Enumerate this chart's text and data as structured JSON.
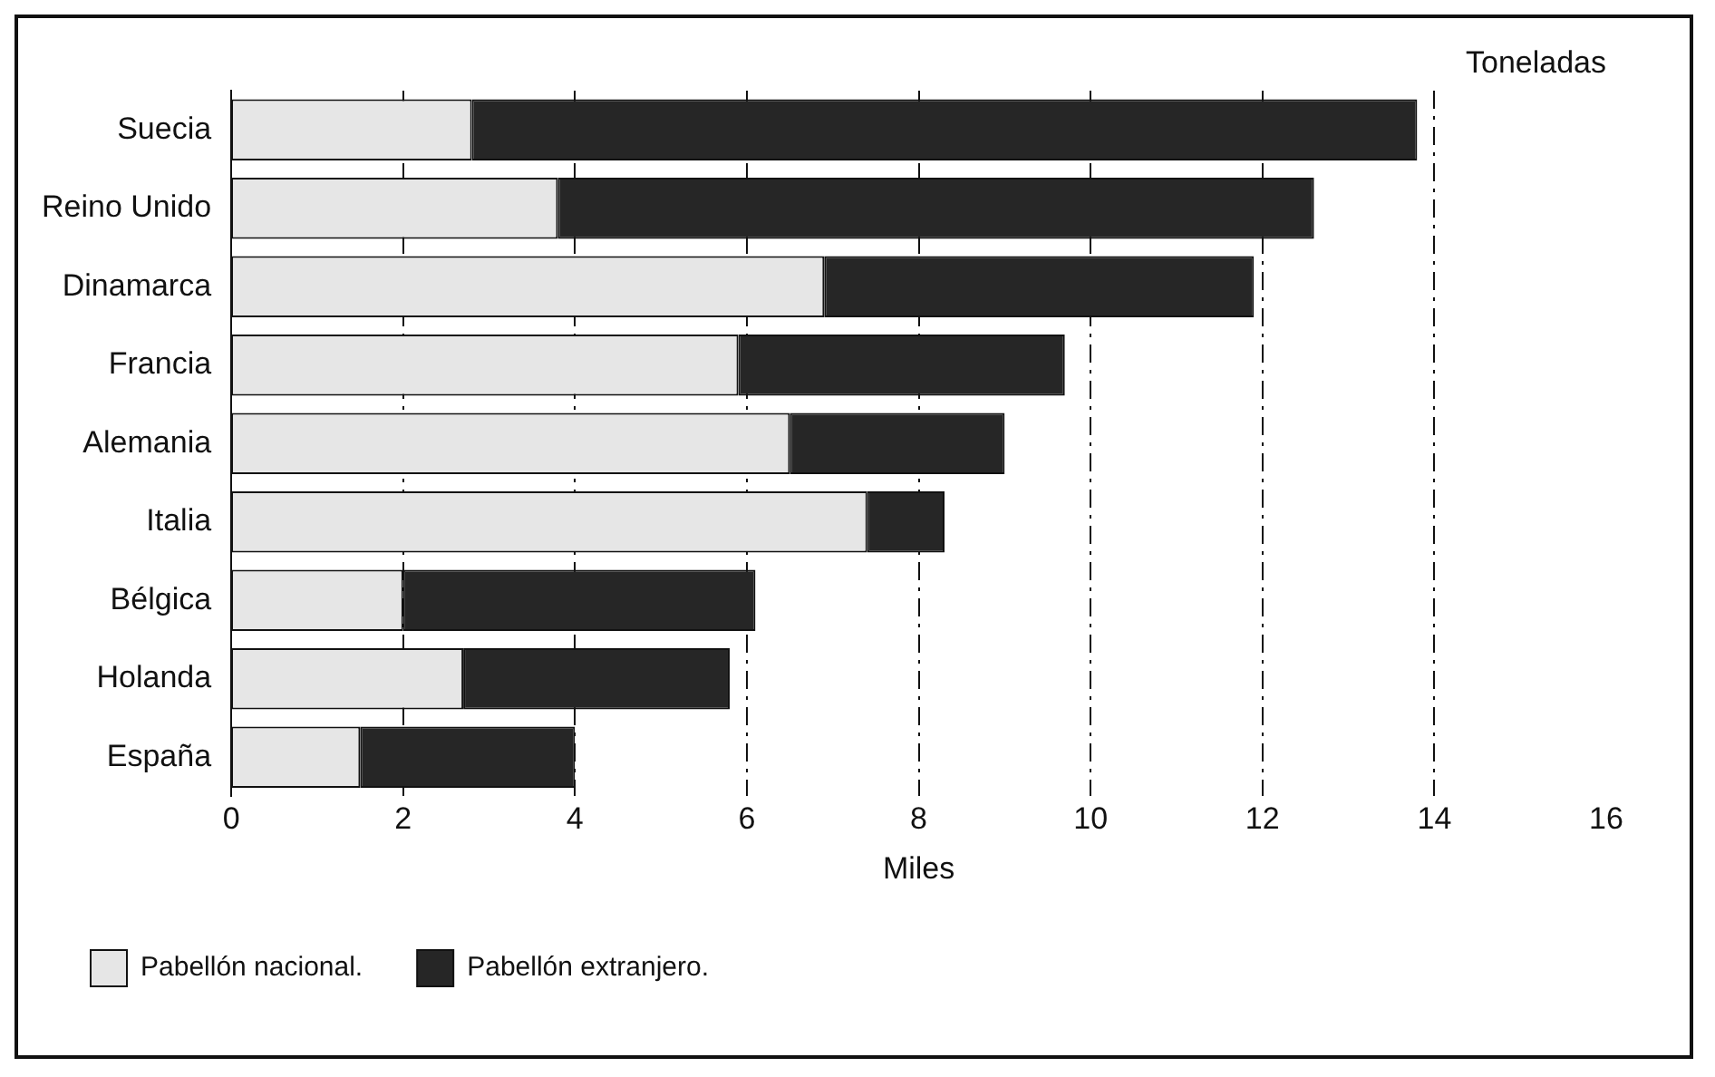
{
  "chart_data": {
    "type": "bar",
    "orientation": "horizontal",
    "stacked": true,
    "categories": [
      "Suecia",
      "Reino Unido",
      "Dinamarca",
      "Francia",
      "Alemania",
      "Italia",
      "Bélgica",
      "Holanda",
      "España"
    ],
    "series": [
      {
        "name": "Pabellón nacional.",
        "color": "#e6e6e6",
        "values": [
          2.8,
          3.8,
          6.9,
          5.9,
          6.5,
          7.4,
          2.0,
          2.7,
          1.5
        ]
      },
      {
        "name": "Pabellón extranjero.",
        "color": "#262626",
        "values": [
          11.0,
          8.8,
          5.0,
          3.8,
          2.5,
          0.9,
          4.1,
          3.1,
          2.5
        ]
      }
    ],
    "xlim": [
      0,
      16
    ],
    "xticks": [
      0,
      2,
      4,
      6,
      8,
      10,
      12,
      14,
      16
    ],
    "xlabel": "Miles",
    "annotations": [
      "Toneladas"
    ],
    "grid": "x",
    "line_style": "dashed",
    "legend": "bottom"
  }
}
